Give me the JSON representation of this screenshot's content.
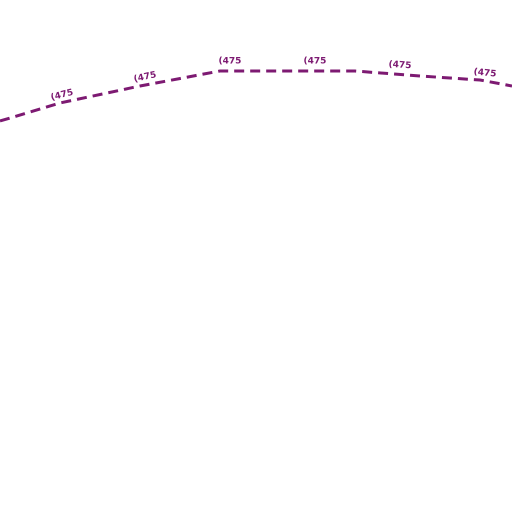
{
  "route": {
    "labels": [
      "(475",
      "(475",
      "(475",
      "(475",
      "(475",
      "(475"
    ]
  }
}
